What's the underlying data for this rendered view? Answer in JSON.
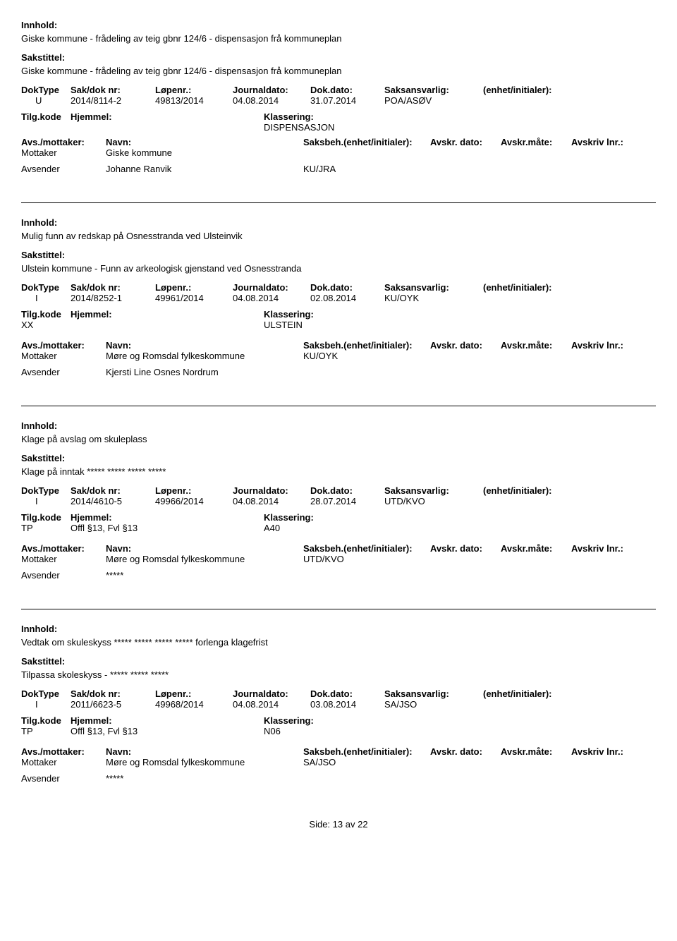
{
  "labels": {
    "innhold": "Innhold:",
    "sakstittel": "Sakstittel:",
    "doktype": "DokType",
    "sakdoknr": "Sak/dok nr:",
    "lopenr": "Løpenr.:",
    "journaldato": "Journaldato:",
    "dokdato": "Dok.dato:",
    "saksansvarlig": "Saksansvarlig:",
    "enhetinit": "(enhet/initialer):",
    "tilgkode": "Tilg.kode",
    "hjemmel": "Hjemmel:",
    "klassering": "Klassering:",
    "avsmott": "Avs./mottaker:",
    "navn": "Navn:",
    "saksbeh": "Saksbeh.(enhet/initialer):",
    "avskrdato": "Avskr. dato:",
    "avskrmate": "Avskr.måte:",
    "avskrivlnr": "Avskriv lnr.:",
    "mottaker": "Mottaker",
    "avsender": "Avsender"
  },
  "entries": [
    {
      "innhold": "Giske kommune - frådeling av teig gbnr 124/6 - dispensasjon frå kommuneplan",
      "sakstittel": "Giske kommune - frådeling av teig gbnr 124/6 - dispensasjon frå kommuneplan",
      "doktype": "U",
      "sakdoknr": "2014/8114-2",
      "lopenr": "49813/2014",
      "journaldato": "04.08.2014",
      "dokdato": "31.07.2014",
      "saksansvarlig": "POA/ASØV",
      "enhetinit": "",
      "tilgkode": "",
      "hjemmel": "",
      "klassering": "DISPENSASJON",
      "mottaker_name": "Giske kommune",
      "mottaker_saksbeh": "",
      "avsender_name": "Johanne Ranvik",
      "avsender_saksbeh": "KU/JRA"
    },
    {
      "innhold": "Mulig funn av redskap på Osnesstranda ved Ulsteinvik",
      "sakstittel": "Ulstein kommune - Funn av arkeologisk gjenstand ved Osnesstranda",
      "doktype": "I",
      "sakdoknr": "2014/8252-1",
      "lopenr": "49961/2014",
      "journaldato": "04.08.2014",
      "dokdato": "02.08.2014",
      "saksansvarlig": "KU/OYK",
      "enhetinit": "",
      "tilgkode": "XX",
      "hjemmel": "",
      "klassering": "ULSTEIN",
      "mottaker_name": "Møre og Romsdal fylkeskommune",
      "mottaker_saksbeh": "KU/OYK",
      "avsender_name": "Kjersti Line Osnes Nordrum",
      "avsender_saksbeh": ""
    },
    {
      "innhold": "Klage på avslag om skuleplass",
      "sakstittel": "Klage på inntak ***** ***** ***** *****",
      "doktype": "I",
      "sakdoknr": "2014/4610-5",
      "lopenr": "49966/2014",
      "journaldato": "04.08.2014",
      "dokdato": "28.07.2014",
      "saksansvarlig": "UTD/KVO",
      "enhetinit": "",
      "tilgkode": "TP",
      "hjemmel": "Offl §13, Fvl §13",
      "klassering": "A40",
      "mottaker_name": "Møre og Romsdal fylkeskommune",
      "mottaker_saksbeh": "UTD/KVO",
      "avsender_name": "*****",
      "avsender_saksbeh": ""
    },
    {
      "innhold": "Vedtak om skuleskyss ***** ***** ***** ***** forlenga klagefrist",
      "sakstittel": "Tilpassa skoleskyss - ***** ***** *****",
      "doktype": "I",
      "sakdoknr": "2011/6623-5",
      "lopenr": "49968/2014",
      "journaldato": "04.08.2014",
      "dokdato": "03.08.2014",
      "saksansvarlig": "SA/JSO",
      "enhetinit": "",
      "tilgkode": "TP",
      "hjemmel": "Offl §13, Fvl §13",
      "klassering": "N06",
      "mottaker_name": "Møre og Romsdal fylkeskommune",
      "mottaker_saksbeh": "SA/JSO",
      "avsender_name": "*****",
      "avsender_saksbeh": ""
    }
  ],
  "footer": {
    "side": "Side:",
    "page": "13",
    "av": "av",
    "total": "22"
  }
}
